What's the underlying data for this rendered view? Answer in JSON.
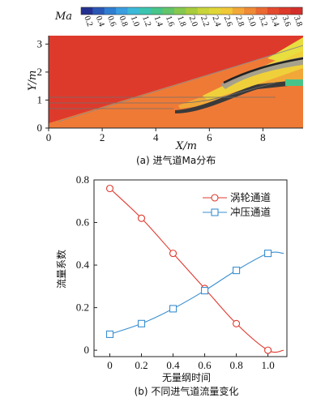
{
  "chart_data": [
    {
      "type": "heatmap",
      "colorbar_label": "Ma",
      "colorbar_ticks": [
        "0.2",
        "0.4",
        "0.6",
        "0.8",
        "1.0",
        "1.2",
        "1.4",
        "1.6",
        "1.8",
        "2.0",
        "2.2",
        "2.4",
        "2.6",
        "2.8",
        "3.0",
        "3.2",
        "3.4",
        "3.6",
        "3.8"
      ],
      "colorbar_colors": [
        "#24308f",
        "#2b57b5",
        "#2f7ed2",
        "#3a9ee0",
        "#3cb8d8",
        "#3cc4b0",
        "#48c48a",
        "#63c46a",
        "#86c84e",
        "#a8cc3c",
        "#c8d43a",
        "#e0d638",
        "#f0c838",
        "#f2a838",
        "#ef8a36",
        "#ea6a32",
        "#e44a2e",
        "#dc3a2a",
        "#d32f2a"
      ],
      "xlabel": "X/m",
      "ylabel": "Y/m",
      "xticks": [
        0,
        2,
        4,
        6,
        8
      ],
      "yticks": [
        0,
        1,
        2,
        3
      ],
      "xlim": [
        0,
        9.5
      ],
      "ylim": [
        0,
        3.3
      ],
      "caption": "(a) 进气道Ma分布"
    },
    {
      "type": "line",
      "xlabel": "无量纲时间",
      "ylabel": "流量系数",
      "x": [
        0,
        0.2,
        0.4,
        0.6,
        0.8,
        1.0
      ],
      "xlim": [
        -0.1,
        1.12
      ],
      "ylim": [
        -0.03,
        0.8
      ],
      "xticks": [
        "0",
        "0.2",
        "0.4",
        "0.6",
        "0.8",
        "1.0"
      ],
      "yticks": [
        "0",
        "0.2",
        "0.4",
        "0.6",
        "0.8"
      ],
      "legend_position": "top-right",
      "series": [
        {
          "name": "涡轮通道",
          "marker": "circle",
          "color": "#e0382e",
          "values": [
            0.76,
            0.62,
            0.455,
            0.29,
            0.125,
            0.0
          ]
        },
        {
          "name": "冲压通道",
          "marker": "square",
          "color": "#3a8fd0",
          "values": [
            0.075,
            0.125,
            0.195,
            0.28,
            0.375,
            0.455
          ]
        }
      ],
      "caption": "(b) 不同进气道流量变化"
    }
  ]
}
